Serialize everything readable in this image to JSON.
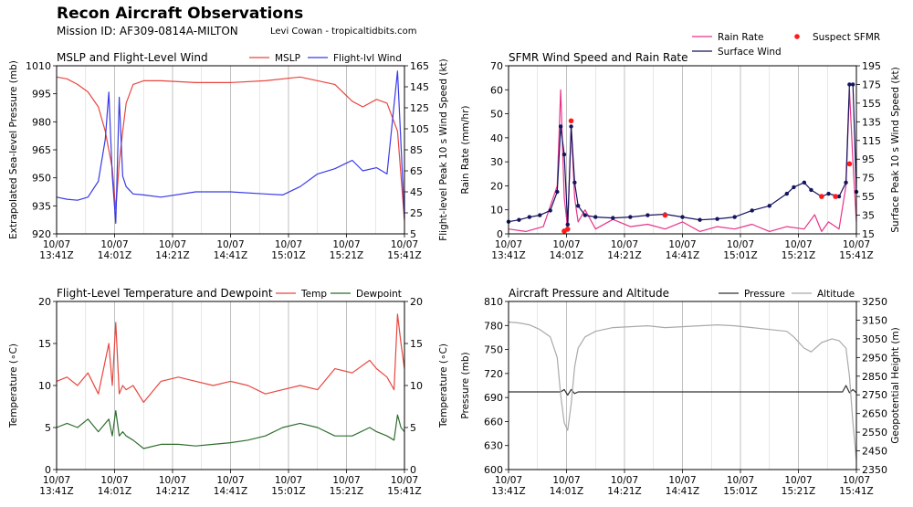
{
  "header": {
    "title": "Recon Aircraft Observations",
    "mission": "Mission ID: AF309-0814A-MILTON",
    "credit": "Levi Cowan - tropicaltidbits.com"
  },
  "colors": {
    "mslp": "#e8473f",
    "flight_wind": "#3a3ae8",
    "rain": "#e8338a",
    "sfc_wind": "#14145f",
    "suspect": "#ff1a1a",
    "temp": "#e8473f",
    "dewpoint": "#2e6e2e",
    "pressure": "#333333",
    "altitude": "#aaaaaa"
  },
  "chart_data": [
    {
      "type": "line",
      "title": "MSLP and Flight-Level Wind",
      "ylabel": "Extrapolated Sea-level Pressure (mb)",
      "ylabel_right": "Flight-level Peak 10 s Wind Speed (kt)",
      "ylim": [
        920,
        1010
      ],
      "ylim_right": [
        5,
        165
      ],
      "yticks": [
        "920",
        "935",
        "950",
        "965",
        "980",
        "995",
        "1010"
      ],
      "yticks_right": [
        "5",
        "25",
        "45",
        "65",
        "85",
        "105",
        "125",
        "145",
        "165"
      ],
      "xticks": [
        "10/07\n13:41Z",
        "10/07\n14:01Z",
        "10/07\n14:21Z",
        "10/07\n14:41Z",
        "10/07\n15:01Z",
        "10/07\n15:21Z",
        "10/07\n15:41Z"
      ],
      "series": [
        {
          "name": "MSLP",
          "axis": "left",
          "x": [
            0,
            3,
            6,
            9,
            12,
            14,
            16,
            17,
            18,
            19,
            20,
            22,
            25,
            30,
            40,
            50,
            60,
            70,
            80,
            85,
            88,
            92,
            95,
            98,
            100
          ],
          "values": [
            1004,
            1003,
            1000,
            996,
            988,
            975,
            955,
            933,
            958,
            975,
            990,
            1000,
            1002,
            1002,
            1001,
            1001,
            1002,
            1004,
            1000,
            991,
            988,
            992,
            990,
            975,
            927
          ]
        },
        {
          "name": "Flight-lvl Wind",
          "axis": "right",
          "x": [
            0,
            3,
            6,
            9,
            12,
            14,
            15,
            16,
            17,
            18,
            19,
            20,
            22,
            25,
            30,
            40,
            50,
            60,
            65,
            70,
            75,
            80,
            85,
            88,
            92,
            95,
            98,
            100
          ],
          "values": [
            40,
            38,
            37,
            40,
            55,
            95,
            140,
            60,
            15,
            135,
            60,
            50,
            43,
            42,
            40,
            45,
            45,
            43,
            42,
            50,
            62,
            67,
            75,
            65,
            68,
            62,
            160,
            20
          ]
        }
      ]
    },
    {
      "type": "line",
      "title": "SFMR Wind Speed and Rain Rate",
      "ylabel": "Rain Rate (mm/hr)",
      "ylabel_right": "Surface Peak 10 s Wind Speed (kt)",
      "ylim": [
        0,
        70
      ],
      "ylim_right": [
        15,
        195
      ],
      "yticks": [
        "0",
        "10",
        "20",
        "30",
        "40",
        "50",
        "60",
        "70"
      ],
      "yticks_right": [
        "15",
        "35",
        "55",
        "75",
        "95",
        "115",
        "135",
        "155",
        "175",
        "195"
      ],
      "xticks": [
        "10/07\n13:41Z",
        "10/07\n14:01Z",
        "10/07\n14:21Z",
        "10/07\n14:41Z",
        "10/07\n15:01Z",
        "10/07\n15:21Z",
        "10/07\n15:41Z"
      ],
      "series": [
        {
          "name": "Rain Rate",
          "axis": "left",
          "x": [
            0,
            5,
            10,
            14,
            15,
            16,
            17,
            18,
            19,
            20,
            22,
            25,
            30,
            35,
            40,
            45,
            50,
            55,
            60,
            65,
            70,
            75,
            80,
            85,
            88,
            90,
            92,
            95,
            97,
            98,
            99,
            100
          ],
          "values": [
            2,
            1,
            3,
            20,
            60,
            15,
            2,
            45,
            15,
            5,
            10,
            2,
            6,
            3,
            4,
            2,
            5,
            1,
            3,
            2,
            4,
            1,
            3,
            2,
            8,
            1,
            5,
            2,
            20,
            60,
            30,
            5
          ]
        },
        {
          "name": "Surface Wind",
          "axis": "right",
          "x": [
            0,
            3,
            6,
            9,
            12,
            14,
            15,
            16,
            17,
            18,
            19,
            20,
            22,
            25,
            30,
            35,
            40,
            45,
            50,
            55,
            60,
            65,
            70,
            75,
            80,
            82,
            85,
            87,
            90,
            92,
            95,
            97,
            98,
            99,
            100
          ],
          "values": [
            28,
            30,
            33,
            35,
            40,
            60,
            130,
            100,
            25,
            130,
            70,
            45,
            35,
            33,
            32,
            33,
            35,
            36,
            33,
            30,
            31,
            33,
            40,
            45,
            58,
            65,
            70,
            62,
            55,
            58,
            55,
            70,
            175,
            175,
            60
          ]
        },
        {
          "name": "Suspect SFMR",
          "type": "scatter",
          "axis": "right",
          "x": [
            16,
            17,
            18,
            45,
            90,
            94,
            98
          ],
          "values": [
            18,
            20,
            136,
            35,
            55,
            55,
            90
          ]
        }
      ]
    },
    {
      "type": "line",
      "title": "Flight-Level Temperature and Dewpoint",
      "ylabel": "Temperature (∘C)",
      "ylabel_right": "Temperature (∘C)",
      "ylim": [
        0,
        20
      ],
      "ylim_right": [
        0,
        20
      ],
      "yticks": [
        "0",
        "5",
        "10",
        "15",
        "20"
      ],
      "yticks_right": [
        "0",
        "5",
        "10",
        "15",
        "20"
      ],
      "xticks": [
        "10/07\n13:41Z",
        "10/07\n14:01Z",
        "10/07\n14:21Z",
        "10/07\n14:41Z",
        "10/07\n15:01Z",
        "10/07\n15:21Z",
        "10/07\n15:41Z"
      ],
      "series": [
        {
          "name": "Temp",
          "x": [
            0,
            3,
            6,
            9,
            12,
            15,
            16,
            17,
            18,
            19,
            20,
            22,
            25,
            30,
            35,
            40,
            45,
            50,
            55,
            60,
            65,
            70,
            75,
            80,
            85,
            90,
            92,
            95,
            97,
            98,
            99,
            100
          ],
          "values": [
            10.5,
            11,
            10,
            11.5,
            9,
            15,
            10,
            17.5,
            9,
            10,
            9.5,
            10,
            8,
            10.5,
            11,
            10.5,
            10,
            10.5,
            10,
            9,
            9.5,
            10,
            9.5,
            12,
            11.5,
            13,
            12,
            11,
            9.5,
            18.5,
            15,
            12
          ]
        },
        {
          "name": "Dewpoint",
          "x": [
            0,
            3,
            6,
            9,
            12,
            15,
            16,
            17,
            18,
            19,
            20,
            22,
            25,
            30,
            35,
            40,
            45,
            50,
            55,
            60,
            65,
            70,
            75,
            80,
            85,
            90,
            92,
            95,
            97,
            98,
            99,
            100
          ],
          "values": [
            5,
            5.5,
            5,
            6,
            4.5,
            6,
            4,
            7,
            4,
            4.5,
            4,
            3.5,
            2.5,
            3,
            3,
            2.8,
            3,
            3.2,
            3.5,
            4,
            5,
            5.5,
            5,
            4,
            4,
            5,
            4.5,
            4,
            3.5,
            6.5,
            5,
            4.5
          ]
        }
      ]
    },
    {
      "type": "line",
      "title": "Aircraft Pressure and Altitude",
      "ylabel": "Pressure (mb)",
      "ylabel_right": "Geopotential Height (m)",
      "ylim": [
        600,
        810
      ],
      "ylim_right": [
        2350,
        3250
      ],
      "yticks": [
        "600",
        "630",
        "660",
        "690",
        "720",
        "750",
        "780",
        "810"
      ],
      "yticks_right": [
        "2350",
        "2450",
        "2550",
        "2650",
        "2750",
        "2850",
        "2950",
        "3050",
        "3150",
        "3250"
      ],
      "xticks": [
        "10/07\n13:41Z",
        "10/07\n14:01Z",
        "10/07\n14:21Z",
        "10/07\n14:41Z",
        "10/07\n15:01Z",
        "10/07\n15:21Z",
        "10/07\n15:41Z"
      ],
      "series": [
        {
          "name": "Pressure",
          "axis": "left",
          "x": [
            0,
            10,
            15,
            16,
            17,
            18,
            19,
            20,
            30,
            40,
            50,
            60,
            70,
            80,
            90,
            96,
            97,
            98,
            99,
            100
          ],
          "values": [
            697,
            697,
            697,
            700,
            693,
            700,
            695,
            697,
            697,
            697,
            697,
            697,
            697,
            697,
            697,
            697,
            705,
            696,
            700,
            696
          ]
        },
        {
          "name": "Altitude",
          "axis": "right",
          "x": [
            0,
            3,
            6,
            9,
            12,
            14,
            15,
            16,
            17,
            18,
            19,
            20,
            22,
            25,
            30,
            35,
            40,
            45,
            50,
            55,
            60,
            65,
            70,
            75,
            80,
            82,
            85,
            87,
            90,
            93,
            95,
            97,
            98,
            99,
            100
          ],
          "values": [
            3140,
            3135,
            3125,
            3100,
            3060,
            2950,
            2750,
            2600,
            2560,
            2700,
            2900,
            3000,
            3060,
            3090,
            3110,
            3115,
            3120,
            3110,
            3115,
            3120,
            3125,
            3120,
            3110,
            3100,
            3090,
            3060,
            3000,
            2980,
            3030,
            3050,
            3040,
            3000,
            2850,
            2600,
            2400
          ]
        }
      ]
    }
  ]
}
